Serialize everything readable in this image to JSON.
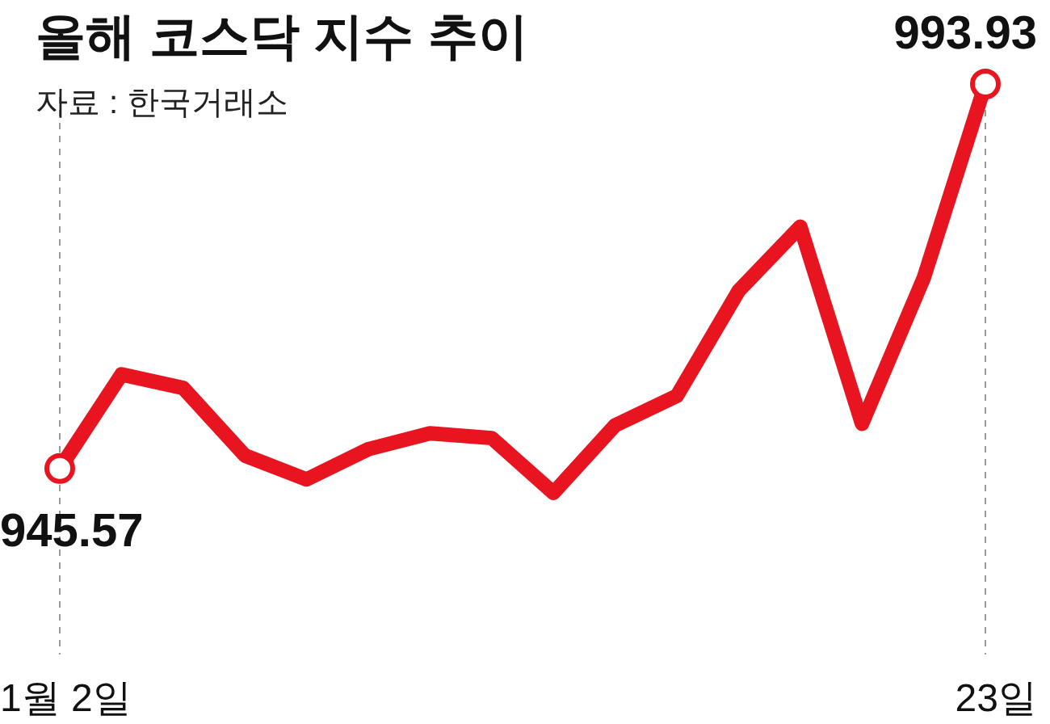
{
  "chart_data": {
    "type": "line",
    "title": "올해 코스닥 지수 추이",
    "subtitle": "자료 : 한국거래소",
    "categories": [
      "1월 2일",
      null,
      null,
      null,
      null,
      null,
      null,
      null,
      null,
      null,
      null,
      null,
      null,
      null,
      null,
      "23일"
    ],
    "series": [
      {
        "color": "#e8141f",
        "values": [
          945.57,
          957.4,
          955.7,
          947.2,
          944.2,
          948.0,
          950.0,
          949.4,
          942.5,
          951.0,
          954.7,
          967.9,
          976.0,
          951.2,
          969.5,
          993.93
        ],
        "value_labels": [
          "945.57",
          null,
          null,
          null,
          null,
          null,
          null,
          null,
          null,
          null,
          null,
          null,
          null,
          null,
          null,
          "993.93"
        ]
      }
    ],
    "tick_labels": "x",
    "line_style": "solid",
    "ref_lines": [
      {
        "axis": "x",
        "value": "1월 2일",
        "color": "#999999",
        "line_style": "dashed"
      },
      {
        "axis": "x",
        "value": "23일",
        "color": "#999999",
        "line_style": "dashed"
      }
    ]
  }
}
